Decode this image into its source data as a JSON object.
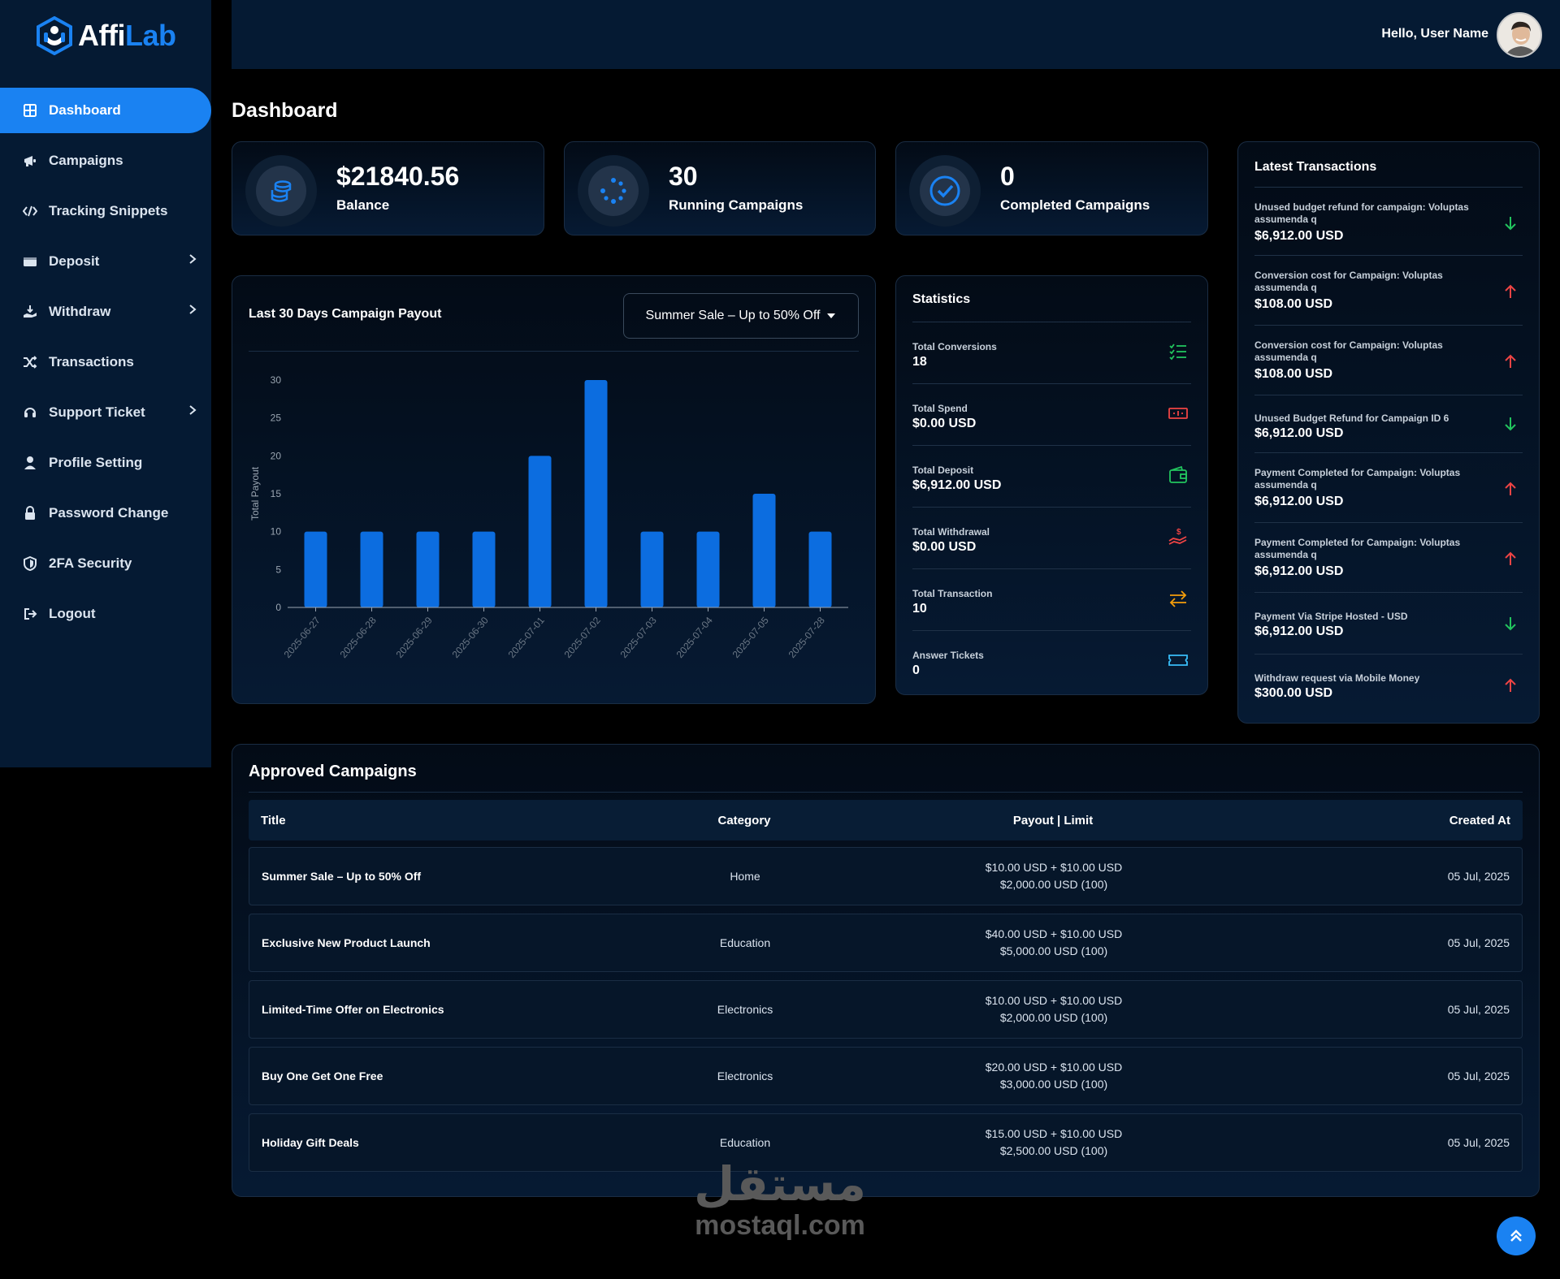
{
  "brand": {
    "name_part1": "Affi",
    "name_part2": "Lab"
  },
  "sidebar": {
    "items": [
      {
        "label": "Dashboard",
        "icon": "dashboard-icon",
        "active": true
      },
      {
        "label": "Campaigns",
        "icon": "megaphone-icon"
      },
      {
        "label": "Tracking Snippets",
        "icon": "code-icon"
      },
      {
        "label": "Deposit",
        "icon": "wallet-icon",
        "has_children": true
      },
      {
        "label": "Withdraw",
        "icon": "withdraw-icon",
        "has_children": true
      },
      {
        "label": "Transactions",
        "icon": "shuffle-icon"
      },
      {
        "label": "Support Ticket",
        "icon": "headset-icon",
        "has_children": true
      },
      {
        "label": "Profile Setting",
        "icon": "user-icon"
      },
      {
        "label": "Password Change",
        "icon": "lock-icon"
      },
      {
        "label": "2FA Security",
        "icon": "shield-icon"
      },
      {
        "label": "Logout",
        "icon": "logout-icon"
      }
    ]
  },
  "header": {
    "greeting": "Hello, User Name"
  },
  "page": {
    "title": "Dashboard"
  },
  "stats": {
    "balance": {
      "value": "$21840.56",
      "label": "Balance"
    },
    "running": {
      "value": "30",
      "label": "Running Campaigns"
    },
    "completed": {
      "value": "0",
      "label": "Completed Campaigns"
    }
  },
  "payout_chart": {
    "title": "Last 30 Days Campaign Payout",
    "selected_campaign": "Summer Sale – Up to 50% Off"
  },
  "chart_data": {
    "type": "bar",
    "title": "Last 30 Days Campaign Payout",
    "ylabel": "Total Payout",
    "xlabel": "",
    "categories": [
      "2025-06-27",
      "2025-06-28",
      "2025-06-29",
      "2025-06-30",
      "2025-07-01",
      "2025-07-02",
      "2025-07-03",
      "2025-07-04",
      "2025-07-05",
      "2025-07-28"
    ],
    "values": [
      10,
      10,
      10,
      10,
      20,
      30,
      10,
      10,
      15,
      10
    ],
    "ylim": [
      0,
      30
    ],
    "yticks": [
      0,
      5,
      10,
      15,
      20,
      25,
      30
    ],
    "bar_color": "#0c6de0",
    "grid": false
  },
  "statistics": {
    "title": "Statistics",
    "items": [
      {
        "label": "Total Conversions",
        "value": "18",
        "icon": "checklist-icon",
        "color": "#22c55e"
      },
      {
        "label": "Total Spend",
        "value": "$0.00 USD",
        "icon": "money-icon",
        "color": "#ef4444"
      },
      {
        "label": "Total Deposit",
        "value": "$6,912.00 USD",
        "icon": "wallet-icon",
        "color": "#22c55e"
      },
      {
        "label": "Total Withdrawal",
        "value": "$0.00 USD",
        "icon": "withdraw-hand-icon",
        "color": "#ef4444"
      },
      {
        "label": "Total Transaction",
        "value": "10",
        "icon": "exchange-icon",
        "color": "#f59e0b"
      },
      {
        "label": "Answer Tickets",
        "value": "0",
        "icon": "ticket-icon",
        "color": "#38bdf8"
      }
    ]
  },
  "transactions": {
    "title": "Latest Transactions",
    "items": [
      {
        "label": "Unused budget refund for campaign: Voluptas assumenda q",
        "amount": "$6,912.00 USD",
        "direction": "down"
      },
      {
        "label": "Conversion cost for Campaign: Voluptas assumenda q",
        "amount": "$108.00 USD",
        "direction": "up"
      },
      {
        "label": "Conversion cost for Campaign: Voluptas assumenda q",
        "amount": "$108.00 USD",
        "direction": "up"
      },
      {
        "label": "Unused Budget Refund for Campaign ID 6",
        "amount": "$6,912.00 USD",
        "direction": "down"
      },
      {
        "label": "Payment Completed for Campaign: Voluptas assumenda q",
        "amount": "$6,912.00 USD",
        "direction": "up"
      },
      {
        "label": "Payment Completed for Campaign: Voluptas assumenda q",
        "amount": "$6,912.00 USD",
        "direction": "up"
      },
      {
        "label": "Payment Via Stripe Hosted - USD",
        "amount": "$6,912.00 USD",
        "direction": "down"
      },
      {
        "label": "Withdraw request via Mobile Money",
        "amount": "$300.00 USD",
        "direction": "up"
      }
    ],
    "up_color": "#ef4444",
    "down_color": "#22c55e"
  },
  "approved": {
    "title": "Approved Campaigns",
    "columns": {
      "title": "Title",
      "category": "Category",
      "payout": "Payout | Limit",
      "created": "Created At"
    },
    "rows": [
      {
        "title": "Summer Sale – Up to 50% Off",
        "category": "Home",
        "payout": "$10.00 USD + $10.00 USD",
        "limit": "$2,000.00 USD (100)",
        "created": "05 Jul, 2025"
      },
      {
        "title": "Exclusive New Product Launch",
        "category": "Education",
        "payout": "$40.00 USD + $10.00 USD",
        "limit": "$5,000.00 USD (100)",
        "created": "05 Jul, 2025"
      },
      {
        "title": "Limited-Time Offer on Electronics",
        "category": "Electronics",
        "payout": "$10.00 USD + $10.00 USD",
        "limit": "$2,000.00 USD (100)",
        "created": "05 Jul, 2025"
      },
      {
        "title": "Buy One Get One Free",
        "category": "Electronics",
        "payout": "$20.00 USD + $10.00 USD",
        "limit": "$3,000.00 USD (100)",
        "created": "05 Jul, 2025"
      },
      {
        "title": "Holiday Gift Deals",
        "category": "Education",
        "payout": "$15.00 USD + $10.00 USD",
        "limit": "$2,500.00 USD (100)",
        "created": "05 Jul, 2025"
      }
    ]
  },
  "watermark": {
    "arabic": "مستقل",
    "latin": "mostaql.com"
  },
  "colors": {
    "accent": "#1a82f2",
    "panel": "#051a33"
  }
}
